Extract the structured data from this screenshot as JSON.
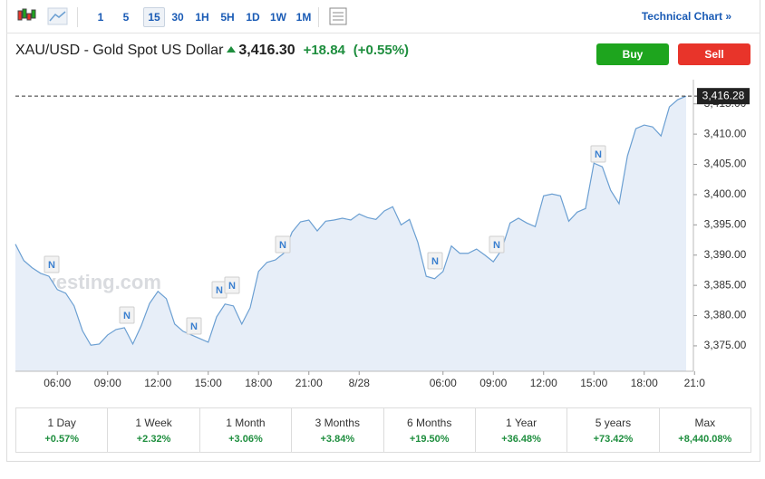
{
  "toolbar": {
    "intervals": [
      "1",
      "5",
      "15",
      "30",
      "1H",
      "5H",
      "1D",
      "1W",
      "1M"
    ],
    "technical_chart_link": "Technical Chart »"
  },
  "header": {
    "title": "XAU/USD - Gold Spot US Dollar",
    "price": "3,416.30",
    "change": "+18.84",
    "change_percent": "(+0.55%)"
  },
  "buttons": {
    "buy": "Buy",
    "sell": "Sell"
  },
  "chart_data": {
    "type": "line",
    "color": "#6b9fd2",
    "fill_color": "#e7eef8",
    "categories": [
      null,
      null,
      null,
      null,
      null,
      "06:00",
      null,
      null,
      null,
      null,
      null,
      "09:00",
      null,
      null,
      null,
      null,
      null,
      "12:00",
      null,
      null,
      null,
      null,
      null,
      "15:00",
      null,
      null,
      null,
      null,
      null,
      "18:00",
      null,
      null,
      null,
      null,
      null,
      "21:00",
      null,
      null,
      null,
      null,
      null,
      "8/28",
      null,
      null,
      null,
      null,
      null,
      null,
      null,
      null,
      null,
      "06:00",
      null,
      null,
      null,
      null,
      null,
      "09:00",
      null,
      null,
      null,
      null,
      null,
      "12:00",
      null,
      null,
      null,
      null,
      null,
      "15:00",
      null,
      null,
      null,
      null,
      null,
      "18:00",
      null,
      null,
      null,
      null,
      null,
      "21:0"
    ],
    "values": [
      3391.8,
      3389.1,
      3387.9,
      3387.0,
      3386.5,
      3384.3,
      3383.7,
      3381.6,
      3377.5,
      3375.1,
      3375.3,
      3376.8,
      3377.7,
      3378.0,
      3375.3,
      3378.3,
      3382.0,
      3384.0,
      3382.8,
      3378.6,
      3377.4,
      3376.8,
      3376.2,
      3375.6,
      3379.8,
      3381.9,
      3381.6,
      3378.6,
      3381.3,
      3387.3,
      3388.8,
      3389.2,
      3390.3,
      3393.8,
      3395.5,
      3395.8,
      3394.0,
      3395.6,
      3395.8,
      3396.1,
      3395.8,
      3396.8,
      3396.2,
      3395.9,
      3397.3,
      3398.0,
      3395.0,
      3395.9,
      3392.1,
      3386.5,
      3386.1,
      3387.3,
      3391.5,
      3390.3,
      3390.3,
      3391.0,
      3390.0,
      3388.9,
      3390.9,
      3395.3,
      3396.1,
      3395.3,
      3394.7,
      3399.8,
      3400.1,
      3399.8,
      3395.6,
      3397.1,
      3397.7,
      3405.2,
      3404.6,
      3400.7,
      3398.5,
      3406.4,
      3410.9,
      3411.5,
      3411.2,
      3409.7,
      3414.5,
      3415.7,
      3416.28,
      null
    ],
    "ylim": [
      3370.8,
      3419.0
    ],
    "yticks": [
      {
        "value": 3375,
        "label": "3,375.00"
      },
      {
        "value": 3380,
        "label": "3,380.00"
      },
      {
        "value": 3385,
        "label": "3,385.00"
      },
      {
        "value": 3390,
        "label": "3,390.00"
      },
      {
        "value": 3395,
        "label": "3,395.00"
      },
      {
        "value": 3400,
        "label": "3,400.00"
      },
      {
        "value": 3405,
        "label": "3,405.00"
      },
      {
        "value": 3410,
        "label": "3,410.00"
      },
      {
        "value": 3415,
        "label": "3,415.00"
      }
    ],
    "last_price": {
      "value": 3416.28,
      "label": "3,416.28"
    },
    "watermark": "Investing.com",
    "news_markers": [
      "N",
      "N",
      "N",
      "N",
      "N",
      "N",
      "N",
      "N",
      "N"
    ]
  },
  "performance": [
    {
      "period": "1 Day",
      "change": "+0.57%"
    },
    {
      "period": "1 Week",
      "change": "+2.32%"
    },
    {
      "period": "1 Month",
      "change": "+3.06%"
    },
    {
      "period": "3 Months",
      "change": "+3.84%"
    },
    {
      "period": "6 Months",
      "change": "+19.50%"
    },
    {
      "period": "1 Year",
      "change": "+36.48%"
    },
    {
      "period": "5 years",
      "change": "+73.42%"
    },
    {
      "period": "Max",
      "change": "+8,440.08%"
    }
  ]
}
